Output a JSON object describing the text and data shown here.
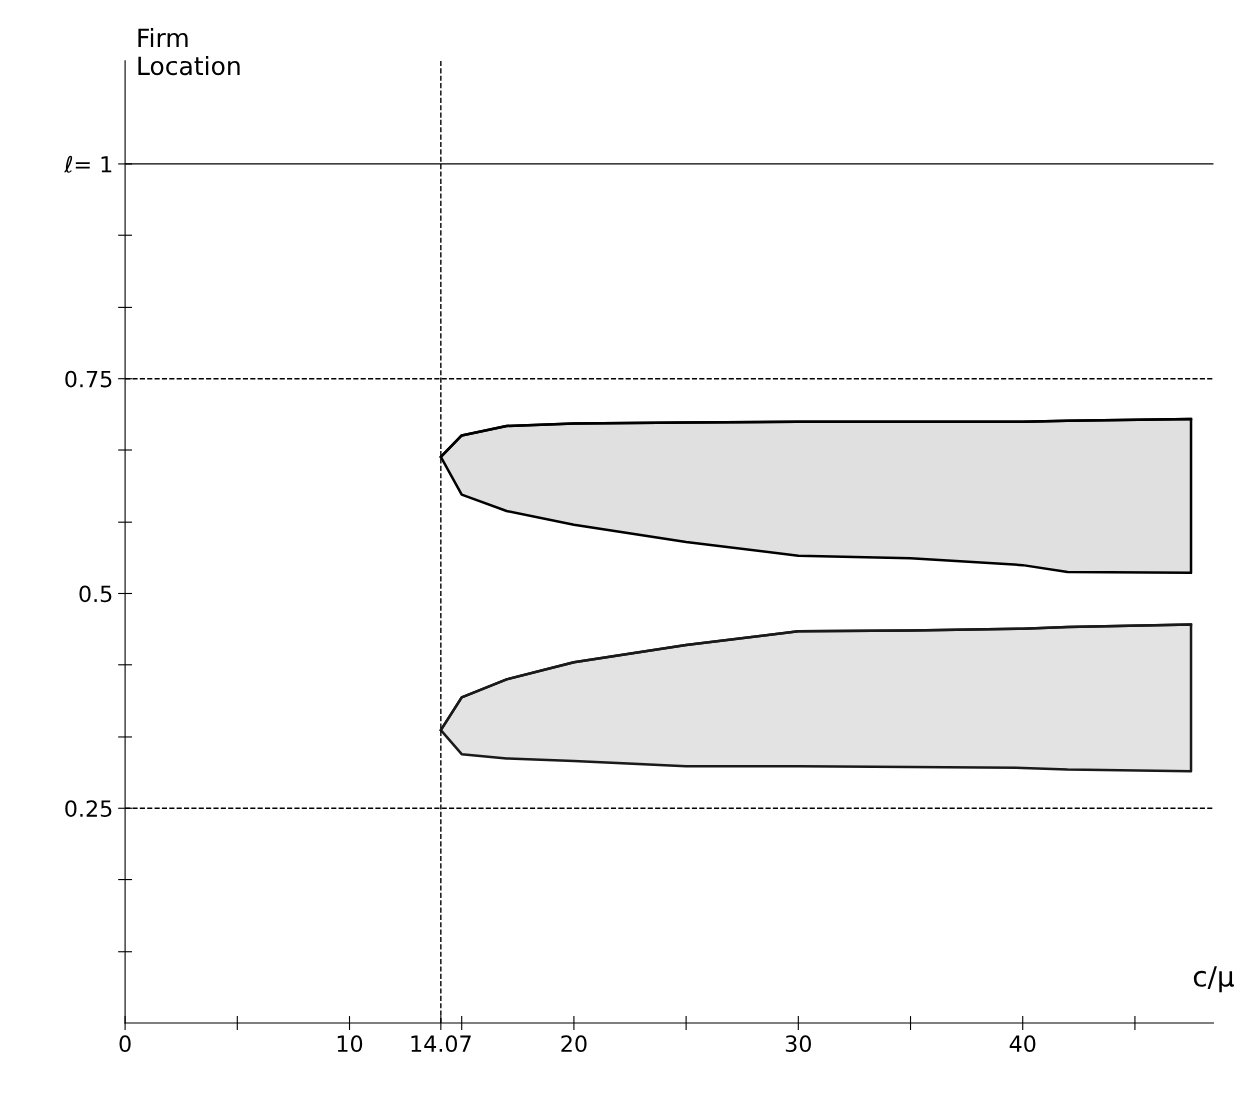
{
  "chart_data": {
    "type": "line",
    "xlabel": "c/μ",
    "ylabel": "Firm\nLocation",
    "xlim": [
      0,
      48.5
    ],
    "ylim": [
      0,
      1.12
    ],
    "xticks": [
      {
        "value": 0,
        "label": "0"
      },
      {
        "value": 5,
        "label": null
      },
      10,
      {
        "value": 14.07,
        "label": "14.07"
      },
      {
        "value": 15,
        "label": null
      },
      20,
      {
        "value": 25,
        "label": null
      },
      30,
      {
        "value": 35,
        "label": null
      },
      40,
      {
        "value": 45,
        "label": null
      }
    ],
    "yticks": [
      {
        "value": 0.083,
        "label": null
      },
      {
        "value": 0.167,
        "label": null
      },
      0.25,
      {
        "value": 0.333,
        "label": null
      },
      {
        "value": 0.417,
        "label": null
      },
      0.5,
      {
        "value": 0.583,
        "label": null
      },
      {
        "value": 0.667,
        "label": null
      },
      0.75,
      {
        "value": 0.833,
        "label": null
      },
      {
        "value": 0.917,
        "label": null
      },
      {
        "value": 1,
        "label": "ℓ= 1"
      }
    ],
    "series": [
      {
        "color": "#000000",
        "x": [
          14.07,
          15,
          17,
          20,
          25,
          30,
          35,
          40,
          42,
          47.5
        ],
        "values": [
          0.659,
          0.684,
          0.695,
          0.698,
          0.699,
          0.7,
          0.7,
          0.7,
          0.701,
          0.703
        ],
        "upper": [
          0.659,
          0.684,
          0.695,
          0.698,
          0.699,
          0.7,
          0.7,
          0.7,
          0.701,
          0.703
        ],
        "lower": [
          0.659,
          0.615,
          0.596,
          0.58,
          0.56,
          0.544,
          0.541,
          0.533,
          0.525,
          0.524
        ]
      },
      {
        "color": "#1a1a1a",
        "x": [
          14.07,
          15,
          17,
          20,
          25,
          30,
          35,
          40,
          42,
          47.5
        ],
        "values": [
          0.341,
          0.379,
          0.4,
          0.42,
          0.44,
          0.456,
          0.457,
          0.459,
          0.461,
          0.464
        ],
        "upper": [
          0.341,
          0.379,
          0.4,
          0.42,
          0.44,
          0.456,
          0.457,
          0.459,
          0.461,
          0.464
        ],
        "lower": [
          0.341,
          0.313,
          0.308,
          0.305,
          0.299,
          0.299,
          0.298,
          0.297,
          0.295,
          0.293
        ]
      }
    ],
    "ref_lines": [
      {
        "axis": "y",
        "value": 1,
        "line_style": "solid"
      },
      {
        "axis": "y",
        "value": 0.75,
        "line_style": "dashed"
      },
      {
        "axis": "y",
        "value": 0.25,
        "line_style": "dashed"
      },
      {
        "axis": "x",
        "value": 14.07,
        "line_style": "dashed"
      }
    ],
    "grid": false,
    "legend": false
  }
}
